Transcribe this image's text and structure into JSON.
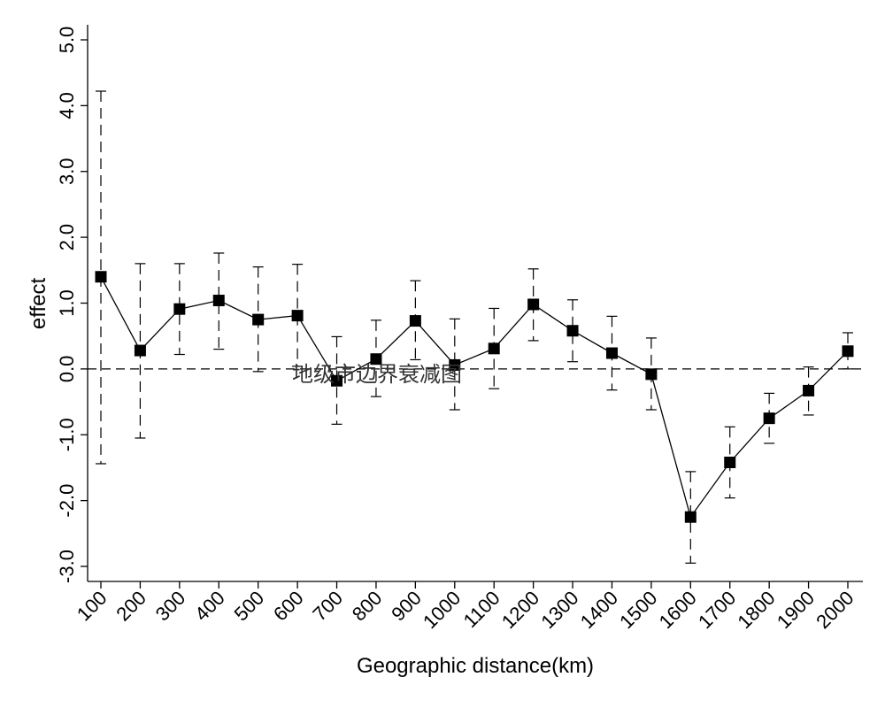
{
  "chart_data": {
    "type": "line",
    "title": "",
    "xlabel": "Geographic distance(km)",
    "ylabel": "effect",
    "annotation": "地级市边界衰减图",
    "x": [
      100,
      200,
      300,
      400,
      500,
      600,
      700,
      800,
      900,
      1000,
      1100,
      1200,
      1300,
      1400,
      1500,
      1600,
      1700,
      1800,
      1900,
      2000
    ],
    "x_tick_labels": [
      "100",
      "200",
      "300",
      "400",
      "500",
      "600",
      "700",
      "800",
      "900",
      "1000",
      "1100",
      "1200",
      "1300",
      "1400",
      "1500",
      "1600",
      "1700",
      "1800",
      "1900",
      "2000"
    ],
    "y_ticks": [
      5.0,
      4.0,
      3.0,
      2.0,
      1.0,
      0.0,
      -1.0,
      -2.0,
      -3.0
    ],
    "y_tick_labels": [
      "5.0",
      "4.0",
      "3.0",
      "2.0",
      "1.0",
      "0.0",
      "-1.0",
      "-2.0",
      "-3.0"
    ],
    "ylim": [
      -3.3,
      5.2
    ],
    "reference_line": 0,
    "series": [
      {
        "values": [
          1.4,
          0.28,
          0.91,
          1.04,
          0.75,
          0.81,
          -0.18,
          0.15,
          0.73,
          0.06,
          0.31,
          0.98,
          0.58,
          0.24,
          -0.08,
          -2.25,
          -1.42,
          -0.75,
          -0.33,
          0.27
        ],
        "ci_upper": [
          4.22,
          1.6,
          1.6,
          1.76,
          1.55,
          1.59,
          0.49,
          0.74,
          1.34,
          0.76,
          0.92,
          1.52,
          1.05,
          0.8,
          0.47,
          -1.56,
          -0.88,
          -0.37,
          0.03,
          0.55
        ],
        "ci_lower": [
          -1.44,
          -1.05,
          0.22,
          0.3,
          -0.04,
          0.04,
          -0.84,
          -0.42,
          0.14,
          -0.62,
          -0.3,
          0.43,
          0.11,
          -0.32,
          -0.62,
          -2.95,
          -1.96,
          -1.13,
          -0.7,
          0.0
        ],
        "marker": "square",
        "color": "#000000"
      }
    ],
    "grid": false,
    "legend": "none"
  }
}
